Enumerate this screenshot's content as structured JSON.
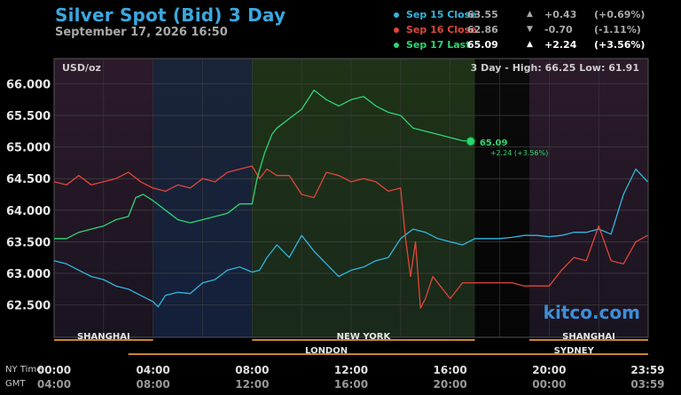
{
  "header": {
    "title": "Silver Spot (Bid) 3 Day",
    "datetime": "September 17, 2026 16:50"
  },
  "legend": [
    {
      "label": "Sep 15 Close",
      "value": "63.55",
      "arrow": "▲",
      "change": "+0.43",
      "pct": "(+0.69%)",
      "color": "#31b6e0",
      "valueColor": "#aaaaaa",
      "changeColor": "#aaaaaa"
    },
    {
      "label": "Sep 16 Close",
      "value": "62.86",
      "arrow": "▼",
      "change": "-0.70",
      "pct": "(-1.11%)",
      "color": "#e0463a",
      "valueColor": "#aaaaaa",
      "changeColor": "#aaaaaa"
    },
    {
      "label": "Sep 17 Last",
      "value": "65.09",
      "arrow": "▲",
      "change": "+2.24",
      "pct": "(+3.56%)",
      "color": "#2ed573",
      "valueColor": "#ffffff",
      "changeColor": "#ffffff"
    }
  ],
  "chart": {
    "unit_label": "USD/oz",
    "range_text": "3 Day - High: 66.25  Low: 61.91",
    "watermark": "kitco.com",
    "last_label": "65.09",
    "last_change": "+2.24 (+3.56%)"
  },
  "sessions": [
    {
      "name": "SHANGHAI",
      "start": 0,
      "end": 4
    },
    {
      "name": "NEW YORK",
      "start": 8,
      "end": 17
    },
    {
      "name": "SHANGHAI",
      "start": 19.2,
      "end": 24
    },
    {
      "name": "LONDON",
      "start": 3,
      "end": 19
    },
    {
      "name": "SYDNEY",
      "start": 18,
      "end": 24
    }
  ],
  "axis_labels": {
    "nytime": "NY Time",
    "gmt": "GMT"
  },
  "time_ticks": [
    {
      "ny": "00:00",
      "gmt": "04:00",
      "h": 0
    },
    {
      "ny": "04:00",
      "gmt": "08:00",
      "h": 4
    },
    {
      "ny": "08:00",
      "gmt": "12:00",
      "h": 8
    },
    {
      "ny": "12:00",
      "gmt": "16:00",
      "h": 12
    },
    {
      "ny": "16:00",
      "gmt": "20:00",
      "h": 16
    },
    {
      "ny": "20:00",
      "gmt": "00:00",
      "h": 20
    },
    {
      "ny": "23:59",
      "gmt": "03:59",
      "h": 23.98
    }
  ],
  "chart_data": {
    "type": "line",
    "title": "Silver Spot (Bid) 3 Day",
    "ylabel": "USD/oz",
    "x_unit": "hours (NY time)",
    "xlim": [
      0,
      24
    ],
    "ylim": [
      61.91,
      66.25
    ],
    "yticks": [
      "62.500",
      "63.000",
      "63.500",
      "64.000",
      "64.500",
      "65.000",
      "65.500",
      "66.000"
    ],
    "grid": true,
    "legend": "top-right",
    "series": [
      {
        "name": "Sep 15 Close",
        "color": "#31b6e0",
        "x": [
          0,
          0.5,
          1,
          1.5,
          2,
          2.5,
          3,
          3.5,
          4,
          4.2,
          4.5,
          5,
          5.5,
          6,
          6.5,
          7,
          7.5,
          8,
          8.3,
          8.6,
          9,
          9.5,
          10,
          10.5,
          11,
          11.5,
          12,
          12.5,
          13,
          13.5,
          14,
          14.5,
          15,
          15.5,
          16,
          16.5,
          17,
          17.5,
          18,
          18.5,
          19,
          19.5,
          20,
          20.5,
          21,
          21.5,
          22,
          22.5,
          23,
          23.5,
          23.98
        ],
        "y": [
          63.2,
          63.15,
          63.05,
          62.95,
          62.9,
          62.8,
          62.75,
          62.65,
          62.55,
          62.47,
          62.65,
          62.7,
          62.68,
          62.85,
          62.9,
          63.05,
          63.1,
          63.02,
          63.05,
          63.25,
          63.45,
          63.25,
          63.6,
          63.35,
          63.15,
          62.95,
          63.05,
          63.1,
          63.2,
          63.25,
          63.55,
          63.7,
          63.65,
          63.55,
          63.5,
          63.45,
          63.55,
          63.55,
          63.55,
          63.57,
          63.6,
          63.6,
          63.58,
          63.6,
          63.65,
          63.65,
          63.7,
          63.62,
          64.25,
          64.65,
          64.45
        ]
      },
      {
        "name": "Sep 16 Close",
        "color": "#e0463a",
        "x": [
          0,
          0.5,
          1,
          1.5,
          2,
          2.5,
          3,
          3.5,
          4,
          4.5,
          5,
          5.5,
          6,
          6.5,
          7,
          7.5,
          8,
          8.3,
          8.6,
          9,
          9.5,
          10,
          10.5,
          11,
          11.5,
          12,
          12.5,
          13,
          13.5,
          14,
          14.2,
          14.4,
          14.6,
          14.8,
          15,
          15.3,
          15.6,
          16,
          16.5,
          17,
          17.5,
          18,
          18.5,
          19,
          19.5,
          20,
          20.5,
          21,
          21.5,
          22,
          22.5,
          23,
          23.5,
          23.98
        ],
        "y": [
          64.45,
          64.4,
          64.55,
          64.4,
          64.45,
          64.5,
          64.6,
          64.45,
          64.35,
          64.3,
          64.4,
          64.35,
          64.5,
          64.45,
          64.6,
          64.65,
          64.7,
          64.5,
          64.65,
          64.55,
          64.55,
          64.25,
          64.2,
          64.6,
          64.55,
          64.45,
          64.5,
          64.45,
          64.3,
          64.35,
          63.55,
          62.95,
          63.5,
          62.45,
          62.6,
          62.95,
          62.8,
          62.6,
          62.85,
          62.85,
          62.85,
          62.85,
          62.85,
          62.8,
          62.8,
          62.8,
          63.05,
          63.25,
          63.2,
          63.75,
          63.2,
          63.15,
          63.5,
          63.6
        ]
      },
      {
        "name": "Sep 17 Last",
        "color": "#2ed573",
        "x": [
          0,
          0.5,
          1,
          1.5,
          2,
          2.5,
          3,
          3.3,
          3.6,
          4,
          4.5,
          5,
          5.5,
          6,
          6.5,
          7,
          7.5,
          8,
          8.2,
          8.5,
          8.8,
          9,
          9.5,
          10,
          10.5,
          11,
          11.5,
          12,
          12.5,
          13,
          13.5,
          14,
          14.5,
          15,
          15.5,
          16,
          16.5,
          16.83
        ],
        "y": [
          63.55,
          63.55,
          63.65,
          63.7,
          63.75,
          63.85,
          63.9,
          64.2,
          64.25,
          64.15,
          64.0,
          63.85,
          63.8,
          63.85,
          63.9,
          63.95,
          64.1,
          64.1,
          64.5,
          64.9,
          65.2,
          65.3,
          65.45,
          65.6,
          65.9,
          65.75,
          65.65,
          65.75,
          65.8,
          65.65,
          65.55,
          65.5,
          65.3,
          65.25,
          65.2,
          65.15,
          65.1,
          65.09
        ]
      }
    ]
  }
}
